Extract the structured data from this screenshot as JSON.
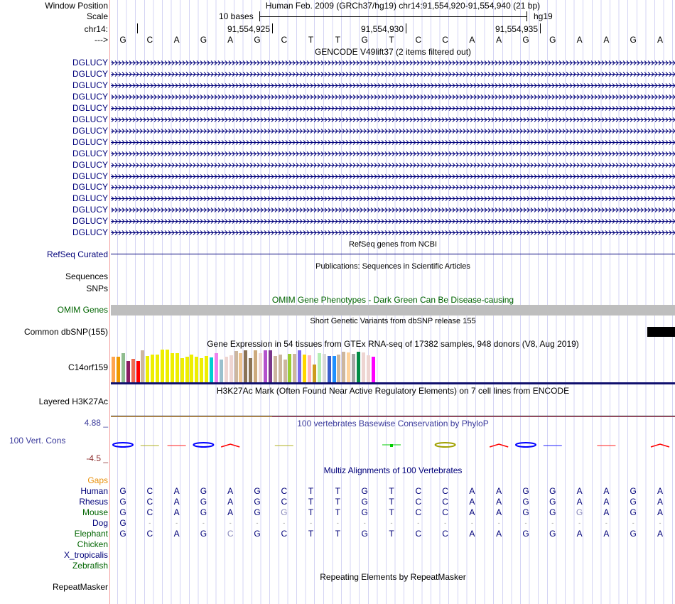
{
  "header": {
    "window_position_label": "Window Position",
    "assembly_info": "Human Feb. 2009 (GRCh37/hg19)   chr14:91,554,920-91,554,940 (21 bp)",
    "scale_label": "Scale",
    "scale_text": "10 bases",
    "scale_db": "hg19",
    "chrom_label": "chr14:",
    "positions": [
      "91,554,925",
      "91,554,930",
      "91,554,935"
    ],
    "strand_label": "--->",
    "bases": [
      "G",
      "C",
      "A",
      "G",
      "A",
      "G",
      "C",
      "T",
      "T",
      "G",
      "T",
      "C",
      "C",
      "A",
      "A",
      "G",
      "G",
      "A",
      "A",
      "G",
      "A"
    ]
  },
  "gencode": {
    "title": "GENCODE V49lift37 (2 items filtered out)",
    "rows": [
      "DGLUCY",
      "DGLUCY",
      "DGLUCY",
      "DGLUCY",
      "DGLUCY",
      "DGLUCY",
      "DGLUCY",
      "DGLUCY",
      "DGLUCY",
      "DGLUCY",
      "DGLUCY",
      "DGLUCY",
      "DGLUCY",
      "DGLUCY",
      "DGLUCY",
      "DGLUCY"
    ],
    "color": "#00007a"
  },
  "refseq": {
    "title": "RefSeq genes from NCBI",
    "label": "RefSeq Curated"
  },
  "publications": {
    "title": "Publications: Sequences in Scientific Articles",
    "labels": [
      "Sequences",
      "SNPs"
    ]
  },
  "omim": {
    "title": "OMIM Gene Phenotypes - Dark Green Can Be Disease-causing",
    "label": "OMIM Genes",
    "bar_color": "#bebebe"
  },
  "dbsnp": {
    "title": "Short Genetic Variants from dbSNP release 155",
    "label": "Common dbSNP(155)"
  },
  "gtex": {
    "title": "Gene Expression in 54 tissues from GTEx RNA-seq of 17382 samples, 948 donors (V8, Aug 2019)",
    "label": "C14orf159",
    "values": [
      105,
      105,
      120,
      87,
      96,
      87,
      132,
      108,
      114,
      114,
      135,
      135,
      120,
      120,
      99,
      105,
      114,
      105,
      99,
      108,
      102,
      120,
      93,
      105,
      111,
      129,
      120,
      132,
      99,
      132,
      120,
      132,
      132,
      108,
      114,
      93,
      117,
      117,
      132,
      114,
      111,
      72,
      120,
      117,
      108,
      108,
      114,
      126,
      123,
      117,
      126,
      123,
      111,
      105
    ],
    "colors": [
      "#FFA54F",
      "#EE9A00",
      "#8FBC8F",
      "#8B1C62",
      "#EE6A50",
      "#FF0000",
      "#CDB79E",
      "#EEEE00",
      "#EEEE00",
      "#EEEE00",
      "#EEEE00",
      "#EEEE00",
      "#EEEE00",
      "#EEEE00",
      "#EEEE00",
      "#EEEE00",
      "#EEEE00",
      "#EEEE00",
      "#EEEE00",
      "#EEEE00",
      "#00CED1",
      "#EE82EE",
      "#9AC0CD",
      "#EED5D2",
      "#EED5D2",
      "#CDB79E",
      "#EEC591",
      "#8B7355",
      "#8B7355",
      "#CDAA7D",
      "#EED5D2",
      "#B452CD",
      "#7A378B",
      "#CDB79E",
      "#CDB79E",
      "#CDB79E",
      "#9ACD32",
      "#CDB79E",
      "#7A67EE",
      "#FFD700",
      "#FFB6C1",
      "#CD9B1D",
      "#B4EEB4",
      "#D9D9D9",
      "#3A5FCD",
      "#1E90FF",
      "#CDB79E",
      "#CDB79E",
      "#FFD39B",
      "#A6A6A6",
      "#008B45",
      "#EED5D2",
      "#EED5D2",
      "#FF00FF"
    ]
  },
  "h3k27ac": {
    "title": "H3K27Ac Mark (Often Found Near Active Regulatory Elements) on 7 cell lines from ENCODE",
    "label": "Layered H3K27Ac"
  },
  "phylop": {
    "title": "100 vertebrates Basewise Conservation by PhyloP",
    "label": "100 Vert. Cons",
    "max": "4.88 _",
    "min": "-4.5 _",
    "marks": [
      {
        "base": 0,
        "color": "#0000ff",
        "kind": "G"
      },
      {
        "base": 1,
        "color": "#b0b020",
        "kind": "dash"
      },
      {
        "base": 2,
        "color": "#ff2020",
        "kind": "dash"
      },
      {
        "base": 3,
        "color": "#0000ff",
        "kind": "G"
      },
      {
        "base": 4,
        "color": "#ff0000",
        "kind": "hat"
      },
      {
        "base": 6,
        "color": "#b0b020",
        "kind": "dash"
      },
      {
        "base": 10,
        "color": "#00cc00",
        "kind": "dot"
      },
      {
        "base": 12,
        "color": "#a0a000",
        "kind": "G"
      },
      {
        "base": 14,
        "color": "#ff0000",
        "kind": "hat"
      },
      {
        "base": 15,
        "color": "#0000ff",
        "kind": "G"
      },
      {
        "base": 16,
        "color": "#2020ff",
        "kind": "dash"
      },
      {
        "base": 18,
        "color": "#ff2020",
        "kind": "dash"
      },
      {
        "base": 20,
        "color": "#ff0000",
        "kind": "hat"
      }
    ]
  },
  "multiz": {
    "title": "Multiz Alignments of 100 Vertebrates",
    "gaps_label": "Gaps",
    "species": [
      {
        "name": "Human",
        "color": "navy",
        "seq": [
          "G",
          "C",
          "A",
          "G",
          "A",
          "G",
          "C",
          "T",
          "T",
          "G",
          "T",
          "C",
          "C",
          "A",
          "A",
          "G",
          "G",
          "A",
          "A",
          "G",
          "A"
        ],
        "faded": []
      },
      {
        "name": "Rhesus",
        "color": "navy",
        "seq": [
          "G",
          "C",
          "A",
          "G",
          "A",
          "G",
          "C",
          "T",
          "T",
          "G",
          "T",
          "C",
          "C",
          "A",
          "A",
          "G",
          "G",
          "A",
          "A",
          "G",
          "A"
        ],
        "faded": []
      },
      {
        "name": "Mouse",
        "color": "green",
        "seq": [
          "G",
          "C",
          "A",
          "G",
          "A",
          "G",
          "G",
          "T",
          "T",
          "G",
          "T",
          "C",
          "C",
          "A",
          "A",
          "G",
          "G",
          "G",
          "A",
          "G",
          "A"
        ],
        "faded": [
          6,
          17
        ]
      },
      {
        "name": "Dog",
        "color": "navy",
        "seq": [
          "G",
          "-",
          "-",
          "-",
          "-",
          "-",
          "-",
          "-",
          "-",
          "-",
          "-",
          "-",
          "-",
          "-",
          "-",
          "-",
          "-",
          "-",
          "-",
          "-",
          "-"
        ],
        "faded": []
      },
      {
        "name": "Elephant",
        "color": "green",
        "seq": [
          "G",
          "C",
          "A",
          "G",
          "C",
          "G",
          "C",
          "T",
          "T",
          "G",
          "T",
          "C",
          "C",
          "A",
          "A",
          "G",
          "G",
          "A",
          "A",
          "G",
          "A"
        ],
        "faded": [
          4
        ]
      },
      {
        "name": "Chicken",
        "color": "green",
        "seq": [],
        "faded": []
      },
      {
        "name": "X_tropicalis",
        "color": "navy",
        "seq": [],
        "faded": []
      },
      {
        "name": "Zebrafish",
        "color": "green",
        "seq": [],
        "faded": []
      }
    ]
  },
  "repeatmasker": {
    "title": "Repeating Elements by RepeatMasker",
    "label": "RepeatMasker"
  }
}
